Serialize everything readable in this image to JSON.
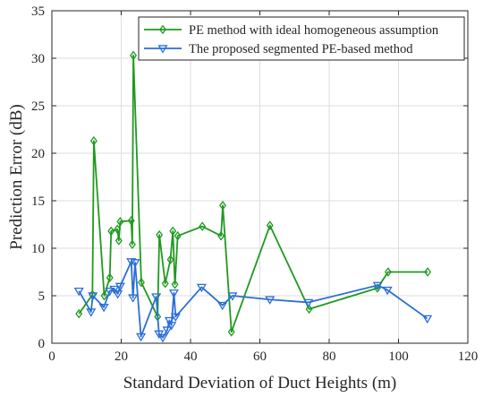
{
  "chart_data": {
    "type": "line",
    "xlabel": "Standard Deviation of Duct Heights (m)",
    "ylabel": "Prediction Error (dB)",
    "xlim": [
      0,
      120
    ],
    "ylim": [
      0,
      35
    ],
    "x_ticks": [
      0,
      20,
      40,
      60,
      80,
      100,
      120
    ],
    "y_ticks": [
      0,
      5,
      10,
      15,
      20,
      25,
      30,
      35
    ],
    "x_tick_labels": [
      "0",
      "20",
      "40",
      "60",
      "80",
      "100",
      "120"
    ],
    "y_tick_labels": [
      "0",
      "5",
      "10",
      "15",
      "20",
      "25",
      "30",
      "35"
    ],
    "grid": true,
    "legend_position": "top-right",
    "series": [
      {
        "name": "PE method with ideal homogeneous assumption",
        "color": "#1f9a1f",
        "marker": "diamond",
        "points": [
          [
            7.8,
            3.1
          ],
          [
            11.7,
            5.1
          ],
          [
            12.1,
            21.3
          ],
          [
            15.1,
            5.0
          ],
          [
            16.7,
            6.9
          ],
          [
            17.1,
            11.8
          ],
          [
            18.9,
            12.0
          ],
          [
            19.3,
            10.8
          ],
          [
            19.7,
            12.8
          ],
          [
            22.9,
            12.9
          ],
          [
            23.2,
            10.4
          ],
          [
            23.5,
            30.3
          ],
          [
            25.8,
            6.4
          ],
          [
            30.5,
            2.8
          ],
          [
            31.0,
            11.4
          ],
          [
            32.7,
            6.3
          ],
          [
            34.2,
            8.8
          ],
          [
            34.9,
            11.8
          ],
          [
            35.5,
            6.2
          ],
          [
            36.3,
            11.3
          ],
          [
            43.4,
            12.3
          ],
          [
            48.8,
            11.3
          ],
          [
            49.3,
            14.5
          ],
          [
            51.8,
            1.2
          ],
          [
            62.9,
            12.4
          ],
          [
            74.2,
            3.6
          ],
          [
            93.9,
            5.8
          ],
          [
            97.0,
            7.5
          ],
          [
            108.4,
            7.5
          ]
        ]
      },
      {
        "name": "The proposed segmented PE-based method",
        "color": "#2a6ed6",
        "marker": "triangle-down",
        "points": [
          [
            7.8,
            5.5
          ],
          [
            11.3,
            3.3
          ],
          [
            11.8,
            5.0
          ],
          [
            15.0,
            3.8
          ],
          [
            16.7,
            5.5
          ],
          [
            18.0,
            5.7
          ],
          [
            19.0,
            5.2
          ],
          [
            19.7,
            6.0
          ],
          [
            22.9,
            8.6
          ],
          [
            23.4,
            4.8
          ],
          [
            24.0,
            8.5
          ],
          [
            25.7,
            0.7
          ],
          [
            30.1,
            4.9
          ],
          [
            30.9,
            1.0
          ],
          [
            32.0,
            0.6
          ],
          [
            33.3,
            1.4
          ],
          [
            33.9,
            2.4
          ],
          [
            34.5,
            1.9
          ],
          [
            35.2,
            5.3
          ],
          [
            35.7,
            2.8
          ],
          [
            43.2,
            5.9
          ],
          [
            49.2,
            4.0
          ],
          [
            52.1,
            5.0
          ],
          [
            62.9,
            4.6
          ],
          [
            74.0,
            4.3
          ],
          [
            94.0,
            6.1
          ],
          [
            96.8,
            5.6
          ],
          [
            108.3,
            2.6
          ]
        ]
      }
    ]
  }
}
